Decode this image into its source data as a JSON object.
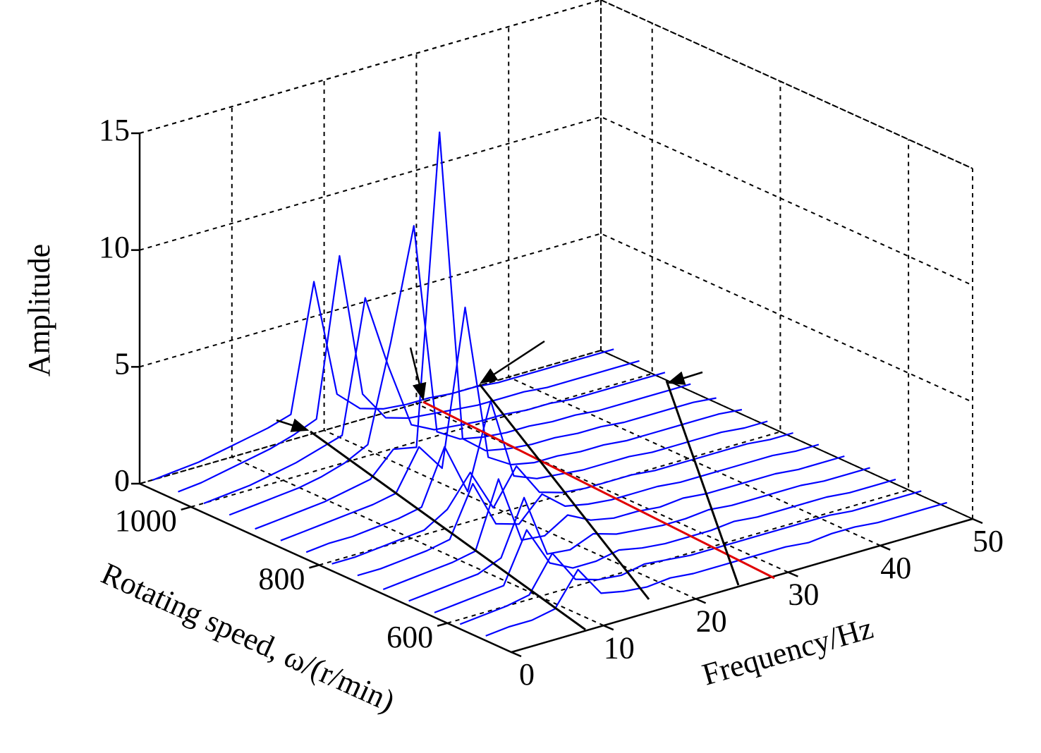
{
  "chart_data": {
    "type": "waterfall",
    "xlabel": "Frequency/Hz",
    "ylabel": "Rotating speed, ω/(r/min)",
    "zlabel": "Amplitude",
    "xlim": [
      0,
      50
    ],
    "xticks": [
      0,
      10,
      20,
      30,
      40,
      50
    ],
    "ylim": [
      500,
      1080
    ],
    "yticks": [
      600,
      800,
      1000
    ],
    "zlim": [
      0,
      15
    ],
    "zticks": [
      0,
      5,
      10,
      15
    ],
    "grid": true,
    "color": "#0000ff",
    "x": [
      0,
      2.5,
      5,
      7.5,
      10,
      12.5,
      15,
      17.5,
      20,
      22.5,
      25,
      27.5,
      30,
      32.5,
      35,
      37.5,
      40,
      42.5,
      45,
      47.5,
      50
    ],
    "series": [
      {
        "speed": 540,
        "values": [
          0.2,
          0.3,
          0.3,
          0.5,
          1.9,
          0.6,
          0.4,
          0.3,
          0.4,
          0.3,
          0.3,
          0.3,
          0.3,
          0.3,
          0.2,
          0.3,
          0.3,
          0.2,
          0.2,
          0.2,
          0.2
        ]
      },
      {
        "speed": 580,
        "values": [
          0.2,
          0.3,
          0.4,
          0.6,
          2.1,
          0.7,
          0.4,
          0.3,
          0.5,
          0.4,
          0.3,
          0.3,
          0.3,
          0.3,
          0.3,
          0.3,
          0.3,
          0.2,
          0.2,
          0.2,
          0.2
        ]
      },
      {
        "speed": 620,
        "values": [
          0.2,
          0.3,
          0.4,
          0.5,
          2.6,
          0.9,
          0.4,
          0.4,
          0.6,
          0.4,
          0.3,
          0.3,
          0.3,
          0.4,
          0.3,
          0.3,
          0.3,
          0.3,
          0.2,
          0.2,
          0.2
        ]
      },
      {
        "speed": 660,
        "values": [
          0.2,
          0.3,
          0.4,
          0.5,
          0.9,
          3.2,
          0.5,
          0.4,
          0.8,
          0.5,
          0.4,
          0.3,
          0.3,
          0.4,
          0.3,
          0.3,
          0.3,
          0.3,
          0.2,
          0.2,
          0.2
        ]
      },
      {
        "speed": 700,
        "values": [
          0.2,
          0.3,
          0.4,
          0.5,
          0.7,
          3.5,
          0.6,
          0.5,
          1.1,
          0.6,
          0.4,
          0.4,
          0.3,
          0.4,
          0.3,
          0.3,
          0.3,
          0.3,
          0.2,
          0.2,
          0.2
        ]
      },
      {
        "speed": 740,
        "values": [
          0.3,
          0.3,
          0.4,
          0.5,
          0.7,
          2.8,
          0.8,
          0.5,
          1.5,
          0.7,
          0.5,
          0.4,
          0.4,
          0.4,
          0.3,
          0.3,
          0.3,
          0.3,
          0.3,
          0.2,
          0.2
        ]
      },
      {
        "speed": 780,
        "values": [
          0.3,
          0.3,
          0.4,
          0.5,
          0.6,
          1.2,
          2.5,
          0.7,
          2.2,
          0.8,
          0.5,
          0.4,
          0.4,
          0.4,
          0.3,
          0.3,
          0.3,
          0.3,
          0.3,
          0.2,
          0.2
        ]
      },
      {
        "speed": 820,
        "values": [
          0.3,
          0.4,
          0.4,
          0.5,
          0.6,
          0.8,
          3.1,
          0.9,
          4.5,
          1.0,
          0.6,
          0.5,
          0.4,
          0.4,
          0.4,
          0.3,
          0.3,
          0.3,
          0.3,
          0.2,
          0.2
        ]
      },
      {
        "speed": 860,
        "values": [
          0.3,
          0.4,
          0.5,
          0.6,
          0.7,
          0.9,
          2.6,
          1.4,
          8.0,
          1.3,
          0.7,
          0.5,
          0.5,
          0.4,
          0.4,
          0.3,
          0.3,
          0.3,
          0.3,
          0.3,
          0.2
        ]
      },
      {
        "speed": 900,
        "values": [
          0.3,
          0.4,
          0.5,
          0.6,
          0.8,
          1.0,
          2.0,
          1.8,
          15.0,
          1.6,
          0.8,
          0.6,
          0.5,
          0.5,
          0.4,
          0.4,
          0.3,
          0.3,
          0.3,
          0.3,
          0.2
        ]
      },
      {
        "speed": 940,
        "values": [
          0.4,
          0.5,
          0.6,
          0.7,
          0.9,
          1.2,
          1.7,
          5.8,
          10.5,
          1.4,
          0.8,
          0.6,
          0.5,
          0.5,
          0.4,
          0.4,
          0.3,
          0.3,
          0.3,
          0.3,
          0.3
        ]
      },
      {
        "speed": 980,
        "values": [
          0.4,
          0.5,
          0.6,
          0.8,
          1.0,
          1.3,
          1.6,
          7.2,
          4.0,
          1.2,
          0.7,
          0.6,
          0.5,
          0.5,
          0.4,
          0.4,
          0.3,
          0.3,
          0.3,
          0.3,
          0.3
        ]
      },
      {
        "speed": 1020,
        "values": [
          0.4,
          0.5,
          0.7,
          0.9,
          1.1,
          1.4,
          1.8,
          8.5,
          2.3,
          1.0,
          0.7,
          0.6,
          0.5,
          0.4,
          0.4,
          0.4,
          0.3,
          0.3,
          0.3,
          0.3,
          0.3
        ]
      },
      {
        "speed": 1060,
        "values": [
          0.4,
          0.5,
          0.6,
          0.8,
          1.0,
          1.2,
          1.5,
          6.9,
          1.8,
          0.9,
          0.6,
          0.5,
          0.5,
          0.4,
          0.4,
          0.3,
          0.3,
          0.3,
          0.3,
          0.3,
          0.3
        ]
      }
    ]
  }
}
